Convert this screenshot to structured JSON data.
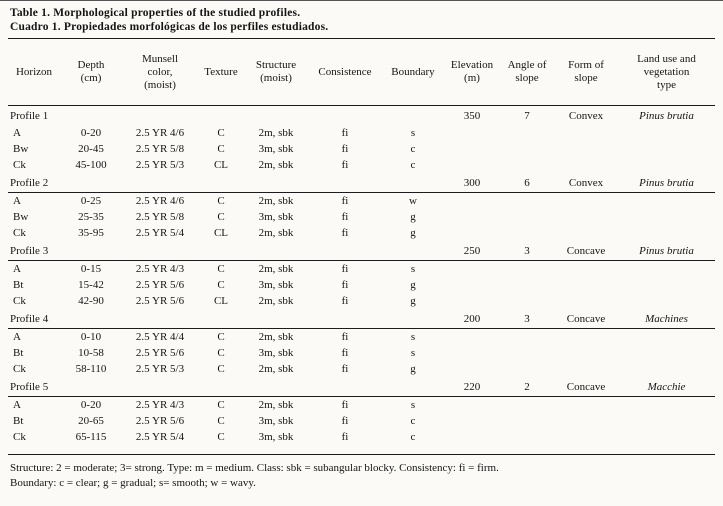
{
  "page": {
    "title_en": "Table 1. Morphological properties of the studied profiles.",
    "title_es": "Cuadro 1. Propiedades morfológicas de los perfiles estudiados."
  },
  "table": {
    "columns": [
      "Horizon",
      "Depth\n(cm)",
      "Munsell\ncolor,\n(moist)",
      "Texture",
      "Structure\n(moist)",
      "Consistence",
      "Boundary",
      "Elevation\n(m)",
      "Angle of\nslope",
      "Form of\nslope",
      "Land use and\nvegetation\ntype"
    ],
    "profiles": [
      {
        "name": "Profile 1",
        "elevation": "350",
        "angle_of_slope": "7",
        "form_of_slope": "Convex",
        "land_use": "Pinus brutia",
        "horizons": [
          {
            "horizon": "A",
            "depth": "0-20",
            "munsell": "2.5 YR 4/6",
            "texture": "C",
            "structure": "2m, sbk",
            "consistence": "fi",
            "boundary": "s"
          },
          {
            "horizon": "Bw",
            "depth": "20-45",
            "munsell": "2.5 YR 5/8",
            "texture": "C",
            "structure": "3m, sbk",
            "consistence": "fi",
            "boundary": "c"
          },
          {
            "horizon": "Ck",
            "depth": "45-100",
            "munsell": "2.5 YR 5/3",
            "texture": "CL",
            "structure": "2m, sbk",
            "consistence": "fi",
            "boundary": "c"
          }
        ]
      },
      {
        "name": "Profile 2",
        "elevation": "300",
        "angle_of_slope": "6",
        "form_of_slope": "Convex",
        "land_use": "Pinus brutia",
        "horizons": [
          {
            "horizon": "A",
            "depth": "0-25",
            "munsell": "2.5 YR 4/6",
            "texture": "C",
            "structure": "2m, sbk",
            "consistence": "fi",
            "boundary": "w"
          },
          {
            "horizon": "Bw",
            "depth": "25-35",
            "munsell": "2.5 YR 5/8",
            "texture": "C",
            "structure": "3m, sbk",
            "consistence": "fi",
            "boundary": "g"
          },
          {
            "horizon": "Ck",
            "depth": "35-95",
            "munsell": "2.5 YR 5/4",
            "texture": "CL",
            "structure": "2m, sbk",
            "consistence": "fi",
            "boundary": "g"
          }
        ]
      },
      {
        "name": "Profile 3",
        "elevation": "250",
        "angle_of_slope": "3",
        "form_of_slope": "Concave",
        "land_use": "Pinus brutia",
        "horizons": [
          {
            "horizon": "A",
            "depth": "0-15",
            "munsell": "2.5 YR 4/3",
            "texture": "C",
            "structure": "2m, sbk",
            "consistence": "fi",
            "boundary": "s"
          },
          {
            "horizon": "Bt",
            "depth": "15-42",
            "munsell": "2.5 YR 5/6",
            "texture": "C",
            "structure": "3m, sbk",
            "consistence": "fi",
            "boundary": "g"
          },
          {
            "horizon": "Ck",
            "depth": "42-90",
            "munsell": "2.5 YR 5/6",
            "texture": "CL",
            "structure": "2m, sbk",
            "consistence": "fi",
            "boundary": "g"
          }
        ]
      },
      {
        "name": "Profile 4",
        "elevation": "200",
        "angle_of_slope": "3",
        "form_of_slope": "Concave",
        "land_use": "Machines",
        "horizons": [
          {
            "horizon": "A",
            "depth": "0-10",
            "munsell": "2.5 YR 4/4",
            "texture": "C",
            "structure": "2m, sbk",
            "consistence": "fi",
            "boundary": "s"
          },
          {
            "horizon": "Bt",
            "depth": "10-58",
            "munsell": "2.5 YR 5/6",
            "texture": "C",
            "structure": "3m, sbk",
            "consistence": "fi",
            "boundary": "s"
          },
          {
            "horizon": "Ck",
            "depth": "58-110",
            "munsell": "2.5 YR 5/3",
            "texture": "C",
            "structure": "2m, sbk",
            "consistence": "fi",
            "boundary": "g"
          }
        ]
      },
      {
        "name": "Profile 5",
        "elevation": "220",
        "angle_of_slope": "2",
        "form_of_slope": "Concave",
        "land_use": "Macchie",
        "horizons": [
          {
            "horizon": "A",
            "depth": "0-20",
            "munsell": "2.5 YR 4/3",
            "texture": "C",
            "structure": "2m, sbk",
            "consistence": "fi",
            "boundary": "s"
          },
          {
            "horizon": "Bt",
            "depth": "20-65",
            "munsell": "2.5 YR 5/6",
            "texture": "C",
            "structure": "3m, sbk",
            "consistence": "fi",
            "boundary": "c"
          },
          {
            "horizon": "Ck",
            "depth": "65-115",
            "munsell": "2.5 YR 5/4",
            "texture": "C",
            "structure": "3m, sbk",
            "consistence": "fi",
            "boundary": "c"
          }
        ]
      }
    ],
    "footnotes": [
      "Structure: 2 = moderate; 3= strong. Type: m = medium. Class: sbk = subangular blocky. Consistency: fi = firm.",
      "Boundary: c = clear; g = gradual; s= smooth; w = wavy."
    ]
  },
  "colors": {
    "paper": "#fbfaf7",
    "ink": "#151515",
    "rule": "#1c1c1c"
  }
}
